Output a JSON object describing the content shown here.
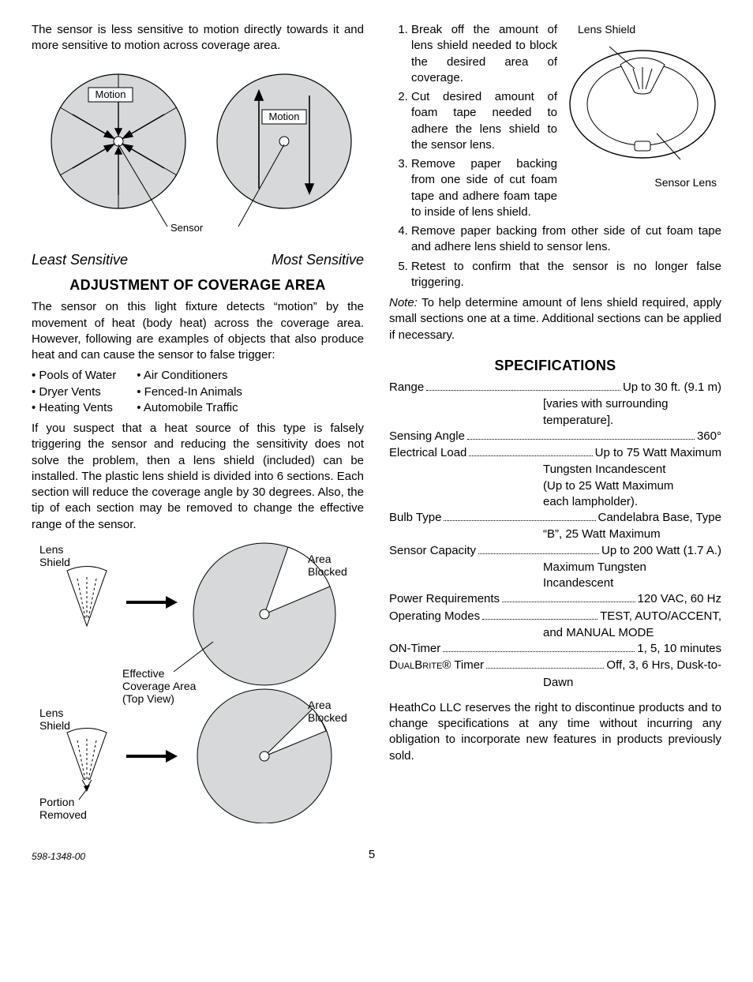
{
  "left": {
    "intro": "The sensor is less sensitive to motion directly towards it and more sensitive to motion across coverage area.",
    "diagram1": {
      "motion_label": "Motion",
      "sensor_label": "Sensor",
      "least": "Least Sensitive",
      "most": "Most Sensitive",
      "circle_fill": "#d7d8d9",
      "circle_stroke": "#000000",
      "label_bg": "#ffffff"
    },
    "heading_adjust": "ADJUSTMENT OF COVERAGE AREA",
    "adjust_para1": "The sensor on this light fixture detects “motion” by the movement of heat (body heat) across the coverage area. However, following are examples of objects that also produce heat and can cause the sensor to false trigger:",
    "false_sources_col1": [
      "Pools of Water",
      "Dryer Vents",
      "Heating Vents"
    ],
    "false_sources_col2": [
      "Air Conditioners",
      "Fenced-In Animals",
      "Automobile Traffic"
    ],
    "adjust_para2": "If you suspect that a heat source of this type is falsely triggering the sensor and reducing the sensitivity does not solve the problem, then a lens shield (included) can be installed. The plastic lens shield is divided into 6 sections. Each section will reduce the coverage angle by 30 degrees. Also, the tip of each section may be removed to change the effective range of the sensor.",
    "diagram2": {
      "lens_shield": "Lens Shield",
      "area_blocked": "Area Blocked",
      "effective": "Effective Coverage Area (Top View)",
      "portion_removed": "Portion Removed",
      "circle_fill": "#d7d8d9",
      "blocked_fill": "#ffffff"
    }
  },
  "right": {
    "shield_fig": {
      "lens_shield": "Lens Shield",
      "sensor_lens": "Sensor Lens"
    },
    "steps": [
      "Break off the amount of lens shield needed to block the desired area of coverage.",
      "Cut desired amount of foam tape needed to adhere the lens shield to the sensor lens.",
      "Remove paper backing from one side of cut foam tape and adhere foam tape to inside of lens shield.",
      "Remove paper backing from other side of cut foam tape and adhere lens shield to sensor lens.",
      "Retest to confirm that the sensor is no longer false triggering."
    ],
    "note_label": "Note:",
    "note_text": " To help determine amount of lens shield required, apply small sections one at a time. Additional sections can be applied if necessary.",
    "spec_heading": "SPECIFICATIONS",
    "specs": [
      {
        "label": "Range",
        "value": "Up to 30 ft. (9.1 m)",
        "cont": [
          "[varies with surrounding",
          "temperature]."
        ]
      },
      {
        "label": "Sensing Angle",
        "value": "360°"
      },
      {
        "label": "Electrical Load",
        "value": "Up to 75 Watt Maximum",
        "cont": [
          "Tungsten Incandescent",
          "(Up to 25 Watt Maximum",
          "each lampholder)."
        ]
      },
      {
        "label": "Bulb Type",
        "value": "Candelabra Base, Type",
        "cont": [
          "“B”, 25 Watt Maximum"
        ]
      },
      {
        "label": "Sensor Capacity",
        "value": "Up to 200 Watt (1.7 A.)",
        "cont": [
          "Maximum Tungsten",
          "Incandescent"
        ]
      },
      {
        "label": "Power Requirements",
        "value": "120 VAC, 60 Hz"
      },
      {
        "label": "Operating Modes",
        "value": "TEST, AUTO/ACCENT,",
        "cont": [
          "and MANUAL MODE"
        ]
      },
      {
        "label": "ON-Timer",
        "value": "1, 5, 10 minutes"
      },
      {
        "label": "DualBrite® Timer",
        "value": "Off, 3, 6 Hrs, Dusk-to-",
        "cont": [
          "Dawn"
        ],
        "smallcap": true
      }
    ],
    "disclaimer": "HeathCo LLC reserves the right to discontinue products and to change specifications at any time without incurring any obligation to incorporate new features in products previously sold."
  },
  "footer": {
    "docnum": "598-1348-00",
    "pagenum": "5"
  }
}
